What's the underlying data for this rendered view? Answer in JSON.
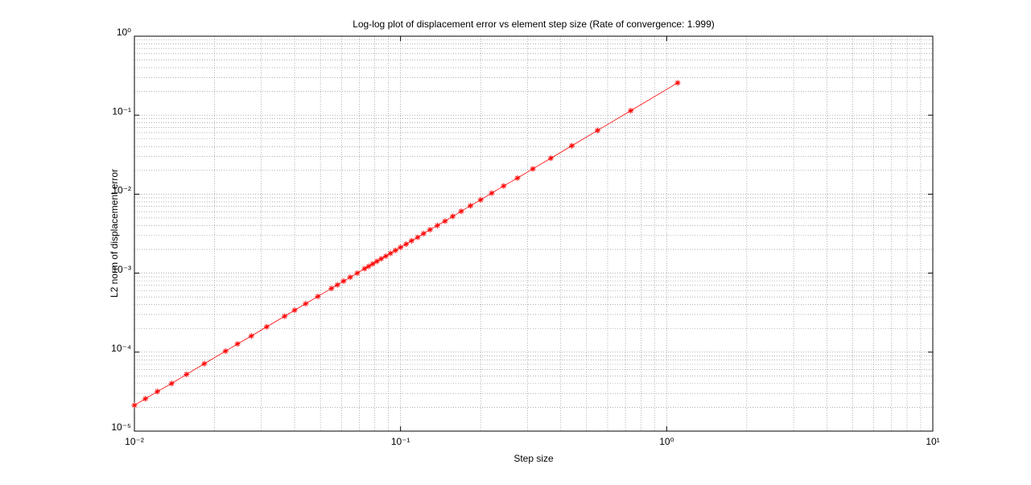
{
  "chart_data": {
    "type": "line",
    "title": "Log-log plot of displacement error vs element step size (Rate of convergence: 1.999)",
    "x_label": "Step size",
    "y_label": "L2 norm of displacement error",
    "log_x": true,
    "log_y": true,
    "grid": true,
    "minor_grid": true,
    "xlim": [
      0.01,
      10
    ],
    "ylim": [
      1e-05,
      1
    ],
    "xticks": [
      {
        "value": 0.01,
        "label": "10⁻²"
      },
      {
        "value": 0.1,
        "label": "10⁻¹"
      },
      {
        "value": 1,
        "label": "10⁰"
      },
      {
        "value": 10,
        "label": "10¹"
      }
    ],
    "yticks": [
      {
        "value": 1e-05,
        "label": "10⁻⁵"
      },
      {
        "value": 0.0001,
        "label": "10⁻⁴"
      },
      {
        "value": 0.001,
        "label": "10⁻³"
      },
      {
        "value": 0.01,
        "label": "10⁻²"
      },
      {
        "value": 0.1,
        "label": "10⁻¹"
      },
      {
        "value": 1,
        "label": "10⁰"
      }
    ],
    "x": [
      1.1,
      0.733,
      0.55,
      0.44,
      0.367,
      0.314,
      0.275,
      0.244,
      0.22,
      0.2,
      0.183,
      0.169,
      0.157,
      0.147,
      0.1375,
      0.129,
      0.122,
      0.116,
      0.11,
      0.105,
      0.1,
      0.0957,
      0.0917,
      0.088,
      0.0846,
      0.0815,
      0.0786,
      0.0759,
      0.0733,
      0.0688,
      0.0647,
      0.0611,
      0.0579,
      0.055,
      0.0489,
      0.044,
      0.04,
      0.0367,
      0.0314,
      0.0275,
      0.0244,
      0.022,
      0.0183,
      0.0157,
      0.0138,
      0.0122,
      0.011,
      0.01
    ],
    "series": [
      {
        "color": "#ff0000",
        "marker": "*",
        "values": [
          0.257,
          0.114,
          0.0641,
          0.041,
          0.0285,
          0.0209,
          0.016,
          0.0127,
          0.0103,
          0.00848,
          0.00713,
          0.00607,
          0.00523,
          0.00456,
          0.00401,
          0.00355,
          0.00317,
          0.00284,
          0.00257,
          0.00233,
          0.00212,
          0.00194,
          0.00178,
          0.00164,
          0.00152,
          0.00141,
          0.00131,
          0.00122,
          0.00114,
          0.001,
          0.000888,
          0.000792,
          0.000711,
          0.000641,
          0.000507,
          0.00041,
          0.000339,
          0.000285,
          0.000209,
          0.00016,
          0.000127,
          0.000103,
          7.13e-05,
          5.23e-05,
          4.01e-05,
          3.17e-05,
          2.57e-05,
          2.12e-05
        ]
      }
    ]
  }
}
